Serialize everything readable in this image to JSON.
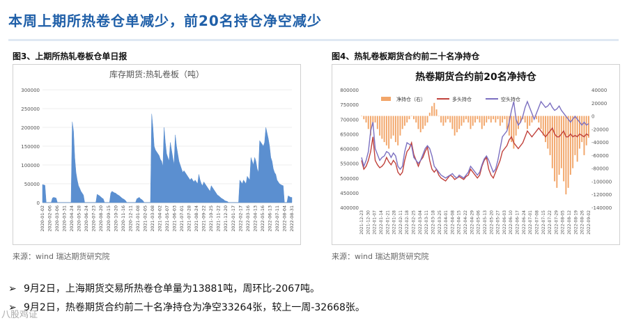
{
  "page": {
    "title": "本周上期所热卷仓单减少，前20名持仓净空减少",
    "left_caption": "图3、上期所热轧卷板仓单日报",
    "right_caption": "图4、热轧卷板期货合约前二十名净持仓",
    "left_source": "来源：wind    瑞达期货研究院",
    "right_source": "来源：wind    瑞达期货研究院",
    "bullets": [
      "9月2日，上海期货交易所热卷仓单量为13881吨，周环比-2067吨。",
      "9月2日，热卷期货合约前二十名净持仓为净空33264张，较上一周-32668张。"
    ],
    "watermark": "八股鸡证"
  },
  "chart_data": [
    {
      "type": "area",
      "title": "库存期货:热轧卷板（吨）",
      "ylim": [
        0,
        300000
      ],
      "yticks": [
        0,
        50000,
        100000,
        150000,
        200000,
        250000,
        300000
      ],
      "xticks": [
        "2020-01-02",
        "2020-02-06",
        "2020-03-06",
        "2020-03-31",
        "2020-04-24",
        "2020-05-28",
        "2020-06-24",
        "2020-07-23",
        "2020-08-20",
        "2020-09-15",
        "2020-10-20",
        "2020-11-16",
        "2020-12-11",
        "2021-01-08",
        "2021-02-05",
        "2021-03-08",
        "2021-04-02",
        "2021-05-07",
        "2021-06-03",
        "2021-07-01",
        "2021-07-28",
        "2021-08-24",
        "2021-09-22",
        "2021-10-25",
        "2021-11-22",
        "2021-12-20",
        "2022-01-17",
        "2022-02-17",
        "2022-03-16",
        "2022-04-13",
        "2022-05-16",
        "2022-06-13",
        "2022-07-11",
        "2022-08-04",
        "2022-08-31"
      ],
      "color": "#5b8fd0",
      "values": [
        48000,
        47000,
        46000,
        0,
        0,
        0,
        0,
        0,
        12000,
        14000,
        13000,
        12000,
        0,
        0,
        0,
        0,
        0,
        0,
        0,
        0,
        0,
        0,
        0,
        0,
        215000,
        190000,
        120000,
        80000,
        60000,
        45000,
        38000,
        30000,
        25000,
        20000,
        0,
        0,
        0,
        0,
        0,
        0,
        0,
        0,
        0,
        0,
        22000,
        20000,
        18000,
        15000,
        12000,
        10000,
        0,
        0,
        0,
        0,
        0,
        25000,
        30000,
        28000,
        26000,
        25000,
        22000,
        20000,
        18000,
        15000,
        12000,
        10000,
        8000,
        5000,
        0,
        0,
        0,
        0,
        0,
        0,
        0,
        0,
        10000,
        12000,
        14000,
        10000,
        8000,
        5000,
        0,
        0,
        0,
        0,
        0,
        0,
        236000,
        200000,
        150000,
        140000,
        135000,
        130000,
        125000,
        115000,
        110000,
        95000,
        200000,
        160000,
        130000,
        120000,
        110000,
        160000,
        140000,
        120000,
        100000,
        180000,
        150000,
        130000,
        110000,
        100000,
        90000,
        80000,
        85000,
        80000,
        75000,
        70000,
        65000,
        60000,
        65000,
        60000,
        55000,
        60000,
        55000,
        50000,
        75000,
        60000,
        50000,
        45000,
        55000,
        50000,
        45000,
        40000,
        35000,
        30000,
        45000,
        40000,
        35000,
        30000,
        25000,
        20000,
        18000,
        15000,
        12000,
        10000,
        8000,
        5000,
        4000,
        3000,
        0,
        0,
        0,
        0,
        0,
        0,
        0,
        0,
        0,
        60000,
        55000,
        50000,
        60000,
        55000,
        50000,
        70000,
        65000,
        60000,
        120000,
        110000,
        100000,
        120000,
        110000,
        90000,
        80000,
        165000,
        160000,
        155000,
        150000,
        160000,
        200000,
        185000,
        170000,
        150000,
        120000,
        110000,
        90000,
        80000,
        75000,
        60000,
        55000,
        50000,
        48000,
        46000,
        45000,
        0,
        0,
        0,
        18000,
        16000,
        14000,
        13881
      ]
    },
    {
      "type": "line",
      "title": "热卷期货合约前20名净持仓",
      "ylim_left": [
        400000,
        800000
      ],
      "yticks_left": [
        400000,
        450000,
        500000,
        550000,
        600000,
        650000,
        700000,
        750000,
        800000
      ],
      "ylim_right": [
        -140000,
        40000
      ],
      "yticks_right": [
        40000,
        20000,
        0,
        -20000,
        -40000,
        -60000,
        -80000,
        -100000,
        -120000,
        -140000
      ],
      "xticks": [
        "2021-12-23",
        "2021-12-30",
        "2022-01-07",
        "2022-01-14",
        "2022-01-21",
        "2022-01-28",
        "2022-02-11",
        "2022-02-18",
        "2022-02-25",
        "2022-03-04",
        "2022-03-11",
        "2022-03-18",
        "2022-03-25",
        "2022-04-01",
        "2022-04-08",
        "2022-04-15",
        "2022-04-22",
        "2022-04-29",
        "2022-05-06",
        "2022-05-13",
        "2022-05-20",
        "2022-05-27",
        "2022-06-03",
        "2022-06-10",
        "2022-06-17",
        "2022-06-24",
        "2022-07-01",
        "2022-07-08",
        "2022-07-15",
        "2022-07-22",
        "2022-07-29",
        "2022-08-05",
        "2022-08-12",
        "2022-08-19",
        "2022-08-26",
        "2022-09-02"
      ],
      "legend": [
        "净持仓（右）",
        "多头持仓",
        "空头持仓"
      ],
      "net_color": "#f2a66a",
      "long_color": "#c0413b",
      "short_color": "#7b6fc0",
      "net_position": [
        0,
        -5000,
        -10000,
        -20000,
        -30000,
        -15000,
        -10000,
        -20000,
        -30000,
        -35000,
        -40000,
        -45000,
        -50000,
        -35000,
        -30000,
        -40000,
        -45000,
        -30000,
        -20000,
        -15000,
        -10000,
        -5000,
        0,
        -5000,
        -10000,
        -20000,
        -25000,
        -20000,
        -15000,
        -10000,
        5000,
        15000,
        20000,
        10000,
        0,
        -10000,
        -15000,
        -10000,
        -5000,
        -10000,
        -20000,
        -30000,
        -25000,
        -20000,
        -15000,
        -10000,
        -5000,
        -10000,
        -20000,
        -15000,
        -10000,
        -5000,
        -10000,
        -20000,
        -15000,
        -10000,
        -5000,
        -10000,
        -5000,
        -10000,
        -5000,
        -15000,
        -10000,
        -5000,
        -20000,
        -30000,
        -40000,
        -50000,
        -30000,
        -20000,
        -10000,
        -5000,
        -10000,
        -20000,
        -15000,
        -10000,
        0,
        -5000,
        -10000,
        -20000,
        -30000,
        -40000,
        -50000,
        -60000,
        -80000,
        -100000,
        -110000,
        -90000,
        -80000,
        -100000,
        -120000,
        -110000,
        -90000,
        -80000,
        -60000,
        -70000,
        -50000,
        -40000,
        -60000,
        -45000,
        -33264
      ],
      "long_position": [
        560000,
        530000,
        540000,
        560000,
        590000,
        640000,
        560000,
        545000,
        535000,
        540000,
        550000,
        570000,
        555000,
        545000,
        560000,
        550000,
        520000,
        510000,
        520000,
        560000,
        590000,
        600000,
        620000,
        580000,
        560000,
        540000,
        560000,
        570000,
        590000,
        605000,
        560000,
        530000,
        520000,
        530000,
        510000,
        500000,
        495000,
        490000,
        500000,
        510000,
        505000,
        495000,
        500000,
        505000,
        500000,
        495000,
        505000,
        510000,
        530000,
        520000,
        510000,
        500000,
        510000,
        540000,
        560000,
        570000,
        530000,
        510000,
        500000,
        520000,
        540000,
        560000,
        590000,
        600000,
        610000,
        630000,
        640000,
        620000,
        610000,
        600000,
        610000,
        620000,
        640000,
        660000,
        650000,
        640000,
        650000,
        660000,
        670000,
        660000,
        650000,
        640000,
        650000,
        660000,
        670000,
        650000,
        640000,
        640000,
        650000,
        660000,
        640000,
        640000,
        650000,
        640000,
        645000,
        640000,
        650000,
        645000,
        640000,
        650000,
        645000
      ],
      "short_position": [
        570000,
        540000,
        560000,
        590000,
        660000,
        690000,
        600000,
        580000,
        560000,
        570000,
        575000,
        590000,
        585000,
        570000,
        585000,
        575000,
        540000,
        530000,
        540000,
        590000,
        620000,
        615000,
        610000,
        570000,
        560000,
        550000,
        560000,
        580000,
        600000,
        610000,
        600000,
        575000,
        540000,
        530000,
        520000,
        510000,
        505000,
        500000,
        505000,
        510000,
        515000,
        505000,
        500000,
        510000,
        505000,
        500000,
        510000,
        520000,
        540000,
        530000,
        520000,
        510000,
        520000,
        545000,
        565000,
        575000,
        560000,
        540000,
        520000,
        530000,
        560000,
        600000,
        640000,
        650000,
        660000,
        690000,
        730000,
        760000,
        700000,
        680000,
        690000,
        710000,
        740000,
        760000,
        740000,
        720000,
        700000,
        720000,
        740000,
        760000,
        750000,
        740000,
        745000,
        755000,
        740000,
        730000,
        735000,
        745000,
        730000,
        720000,
        710000,
        700000,
        690000,
        700000,
        710000,
        700000,
        690000,
        680000,
        690000,
        680000,
        685000
      ]
    }
  ]
}
